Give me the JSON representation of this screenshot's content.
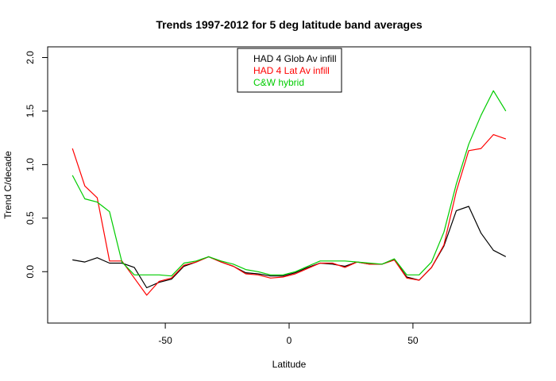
{
  "chart_data": {
    "type": "line",
    "title": "Trends 1997-2012 for 5 deg latitude band averages",
    "xlabel": "Latitude",
    "ylabel": "Trend C/decade",
    "xlim": [
      -97.5,
      97.5
    ],
    "ylim": [
      -0.48,
      2.1
    ],
    "xticks": [
      -50,
      0,
      50
    ],
    "yticks": [
      0.0,
      0.5,
      1.0,
      1.5,
      2.0
    ],
    "xtick_labels": [
      "-50",
      "0",
      "50"
    ],
    "ytick_labels": [
      "0.0",
      "0.5",
      "1.0",
      "1.5",
      "2.0"
    ],
    "grid": false,
    "legend_position": "top-center",
    "x": [
      -87.5,
      -82.5,
      -77.5,
      -72.5,
      -67.5,
      -62.5,
      -57.5,
      -52.5,
      -47.5,
      -42.5,
      -37.5,
      -32.5,
      -27.5,
      -22.5,
      -17.5,
      -12.5,
      -7.5,
      -2.5,
      2.5,
      7.5,
      12.5,
      17.5,
      22.5,
      27.5,
      32.5,
      37.5,
      42.5,
      47.5,
      52.5,
      57.5,
      62.5,
      67.5,
      72.5,
      77.5,
      82.5,
      87.5
    ],
    "series": [
      {
        "name": "HAD 4 Glob Av infill",
        "color": "#000000",
        "values": [
          0.11,
          0.09,
          0.13,
          0.08,
          0.08,
          0.04,
          -0.15,
          -0.1,
          -0.07,
          0.05,
          0.09,
          0.14,
          0.09,
          0.05,
          -0.01,
          -0.02,
          -0.04,
          -0.04,
          -0.01,
          0.04,
          0.08,
          0.07,
          0.05,
          0.09,
          0.07,
          0.07,
          0.11,
          -0.05,
          -0.08,
          0.04,
          0.24,
          0.57,
          0.61,
          0.36,
          0.2,
          0.14
        ]
      },
      {
        "name": "HAD 4 Lat Av infill",
        "color": "#ff0000",
        "values": [
          1.15,
          0.8,
          0.69,
          0.1,
          0.1,
          -0.06,
          -0.22,
          -0.09,
          -0.06,
          0.06,
          0.09,
          0.14,
          0.09,
          0.05,
          -0.02,
          -0.03,
          -0.06,
          -0.05,
          -0.02,
          0.03,
          0.08,
          0.08,
          0.04,
          0.09,
          0.07,
          0.07,
          0.11,
          -0.06,
          -0.08,
          0.04,
          0.25,
          0.75,
          1.13,
          1.15,
          1.28,
          1.24
        ]
      },
      {
        "name": "C&W hybrid",
        "color": "#00cc00",
        "values": [
          0.9,
          0.68,
          0.65,
          0.56,
          0.09,
          -0.03,
          -0.03,
          -0.03,
          -0.04,
          0.08,
          0.1,
          0.14,
          0.1,
          0.07,
          0.02,
          0.0,
          -0.03,
          -0.03,
          0.0,
          0.05,
          0.1,
          0.1,
          0.1,
          0.09,
          0.08,
          0.07,
          0.12,
          -0.03,
          -0.03,
          0.09,
          0.37,
          0.82,
          1.19,
          1.46,
          1.69,
          1.5
        ]
      }
    ]
  }
}
